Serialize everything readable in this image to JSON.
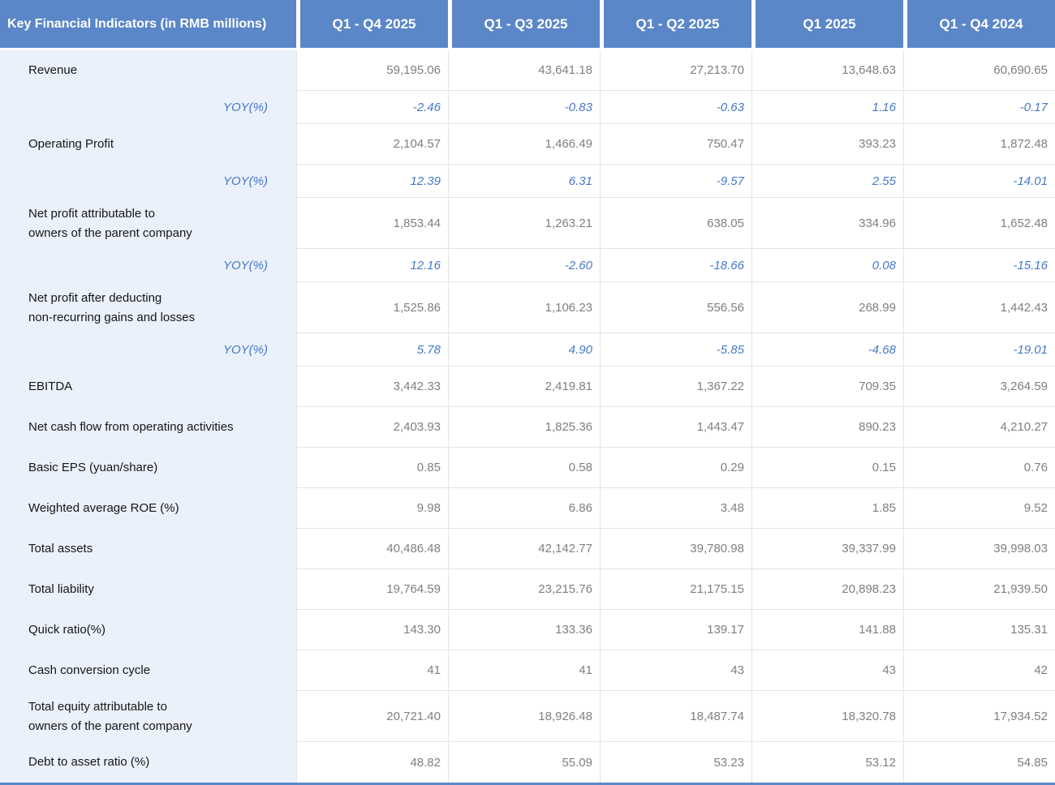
{
  "colors": {
    "header_blue": "#5B87C8",
    "label_column_bg": "#EAF1FA",
    "gridline": "#E4E4E4",
    "yoy_blue": "#4678C8",
    "value_gray": "#7F7F7F",
    "label_dark": "#161616"
  },
  "chart_data": {
    "type": "table",
    "title": "Key Financial Indicators (in RMB millions)",
    "columns": [
      "Q1 - Q4 2025",
      "Q1 - Q3 2025",
      "Q1 - Q2 2025",
      "Q1 2025",
      "Q1 - Q4 2024"
    ],
    "rows": [
      {
        "label": "Revenue",
        "style": "metric",
        "values": [
          "59,195.06",
          "43,641.18",
          "27,213.70",
          "13,648.63",
          "60,690.65"
        ]
      },
      {
        "label": "YOY(%)",
        "style": "yoy",
        "values": [
          "-2.46",
          "-0.83",
          "-0.63",
          "1.16",
          "-0.17"
        ]
      },
      {
        "label": "Operating Profit",
        "style": "metric",
        "values": [
          "2,104.57",
          "1,466.49",
          "750.47",
          "393.23",
          "1,872.48"
        ]
      },
      {
        "label": "YOY(%)",
        "style": "yoy",
        "values": [
          "12.39",
          "6.31",
          "-9.57",
          "2.55",
          "-14.01"
        ]
      },
      {
        "label": "Net profit attributable to\nowners of the parent company",
        "style": "metric",
        "values": [
          "1,853.44",
          "1,263.21",
          "638.05",
          "334.96",
          "1,652.48"
        ]
      },
      {
        "label": "YOY(%)",
        "style": "yoy",
        "values": [
          "12.16",
          "-2.60",
          "-18.66",
          "0.08",
          "-15.16"
        ]
      },
      {
        "label": "Net profit after deducting\nnon-recurring gains and losses",
        "style": "metric",
        "values": [
          "1,525.86",
          "1,106.23",
          "556.56",
          "268.99",
          "1,442.43"
        ]
      },
      {
        "label": "YOY(%)",
        "style": "yoy",
        "values": [
          "5.78",
          "4.90",
          "-5.85",
          "-4.68",
          "-19.01"
        ]
      },
      {
        "label": "EBITDA",
        "style": "metric",
        "values": [
          "3,442.33",
          "2,419.81",
          "1,367.22",
          "709.35",
          "3,264.59"
        ]
      },
      {
        "label": "Net cash flow from operating activities",
        "style": "metric",
        "values": [
          "2,403.93",
          "1,825.36",
          "1,443.47",
          "890.23",
          "4,210.27"
        ]
      },
      {
        "label": "Basic EPS (yuan/share)",
        "style": "metric",
        "values": [
          "0.85",
          "0.58",
          "0.29",
          "0.15",
          "0.76"
        ]
      },
      {
        "label": "Weighted average ROE (%)",
        "style": "metric",
        "values": [
          "9.98",
          "6.86",
          "3.48",
          "1.85",
          "9.52"
        ]
      },
      {
        "label": "Total assets",
        "style": "metric",
        "values": [
          "40,486.48",
          "42,142.77",
          "39,780.98",
          "39,337.99",
          "39,998.03"
        ]
      },
      {
        "label": "Total liability",
        "style": "metric",
        "values": [
          "19,764.59",
          "23,215.76",
          "21,175.15",
          "20,898.23",
          "21,939.50"
        ]
      },
      {
        "label": "Quick ratio(%)",
        "style": "metric",
        "values": [
          "143.30",
          "133.36",
          "139.17",
          "141.88",
          "135.31"
        ]
      },
      {
        "label": "Cash conversion cycle",
        "style": "metric",
        "values": [
          "41",
          "41",
          "43",
          "43",
          "42"
        ]
      },
      {
        "label": "Total equity attributable to\nowners of the parent company",
        "style": "metric",
        "values": [
          "20,721.40",
          "18,926.48",
          "18,487.74",
          "18,320.78",
          "17,934.52"
        ]
      },
      {
        "label": "Debt to asset ratio (%)",
        "style": "metric",
        "values": [
          "48.82",
          "55.09",
          "53.23",
          "53.12",
          "54.85"
        ]
      }
    ]
  }
}
